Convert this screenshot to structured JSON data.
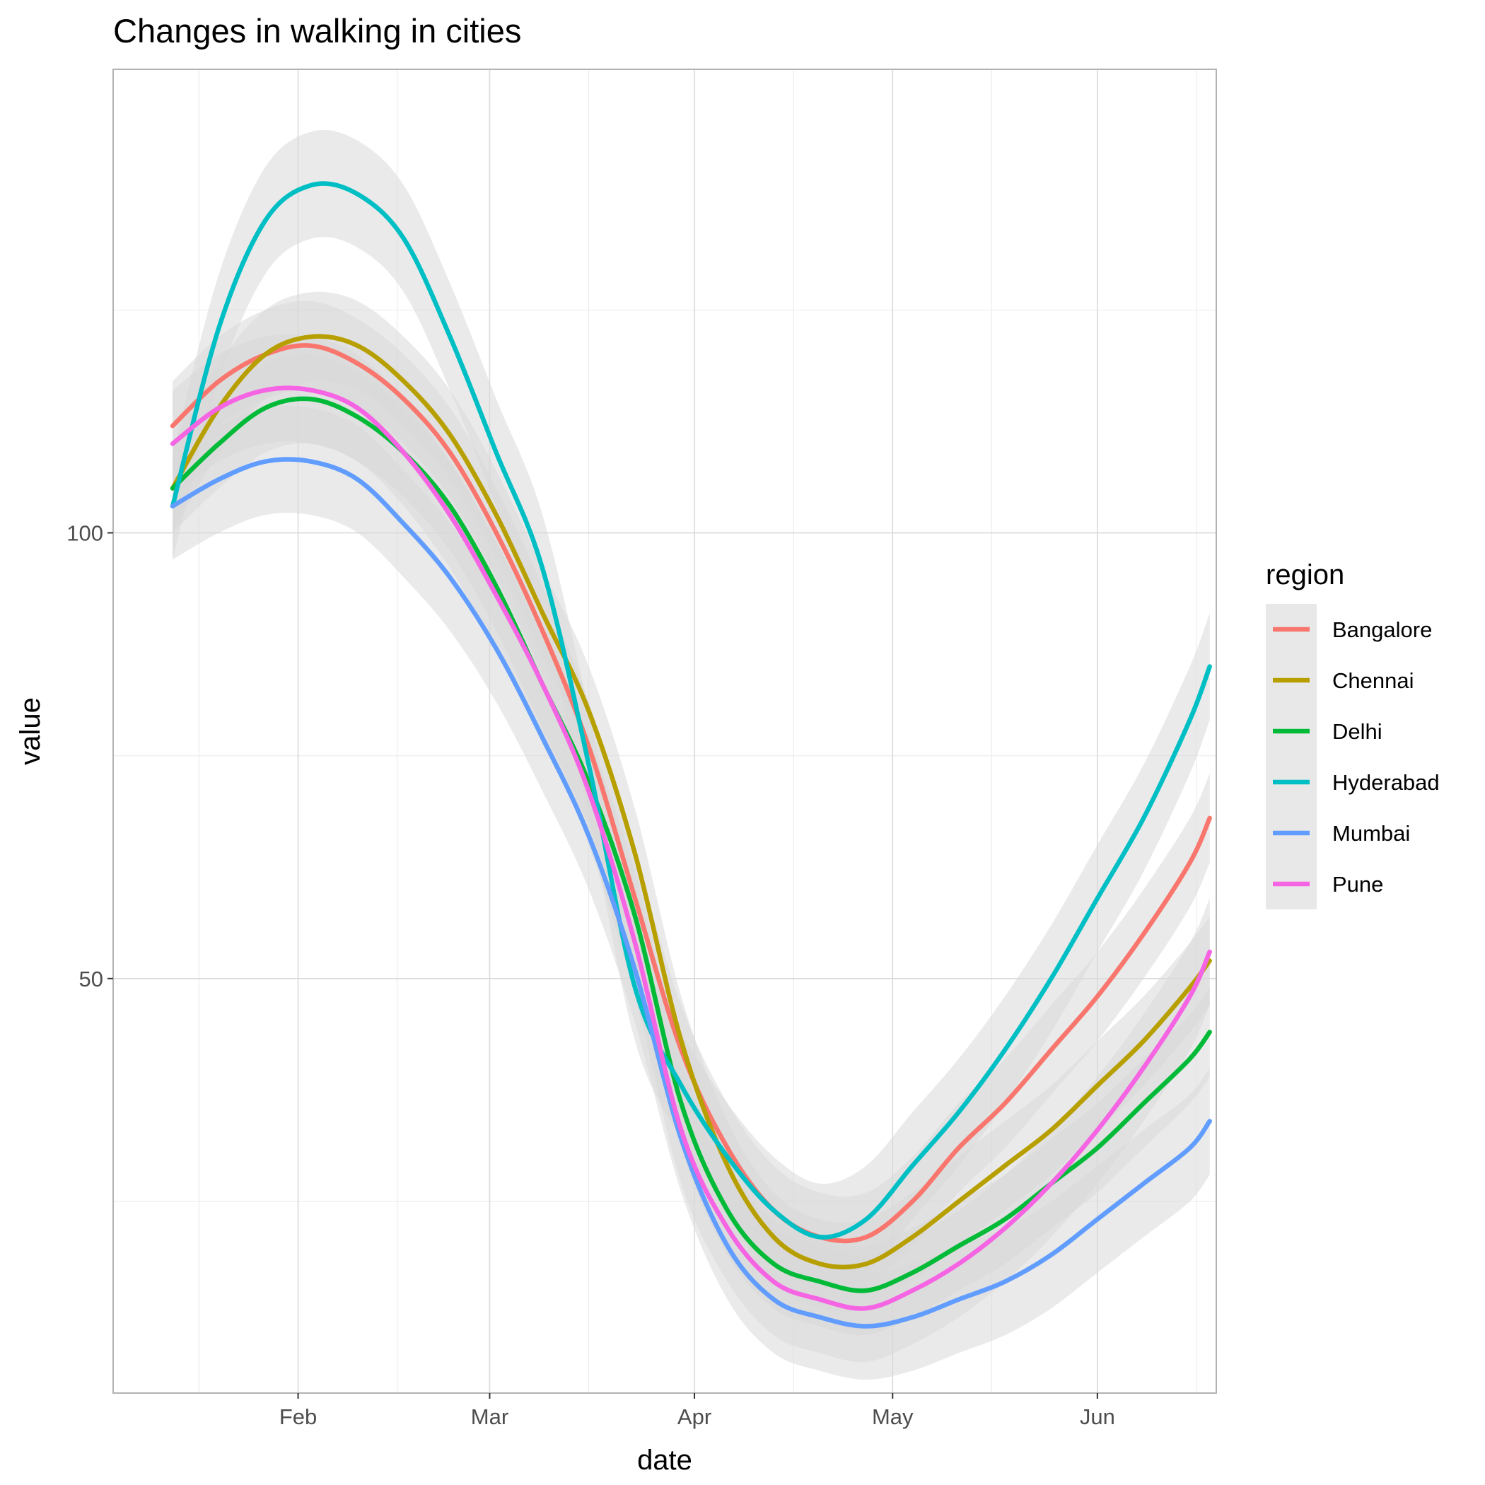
{
  "chart_data": {
    "type": "line",
    "title": "Changes in walking in cities",
    "xlabel": "date",
    "ylabel": "value",
    "x_type": "date",
    "xlim": [
      "2020-01-04",
      "2020-06-19"
    ],
    "ylim": [
      3.5,
      152
    ],
    "x_ticks": [
      {
        "date": "2020-02-01",
        "label": "Feb"
      },
      {
        "date": "2020-03-01",
        "label": "Mar"
      },
      {
        "date": "2020-04-01",
        "label": "Apr"
      },
      {
        "date": "2020-05-01",
        "label": "May"
      },
      {
        "date": "2020-06-01",
        "label": "Jun"
      }
    ],
    "x_minor_ticks": [
      "2020-01-17",
      "2020-02-16",
      "2020-03-16",
      "2020-04-16",
      "2020-05-16",
      "2020-06-16"
    ],
    "y_ticks": [
      50,
      100
    ],
    "y_minor_ticks": [
      25,
      75,
      125
    ],
    "legend": {
      "title": "region",
      "position": "right"
    },
    "grid": true,
    "band_color": "#d9d9d9",
    "x": [
      "2020-01-13",
      "2020-01-20",
      "2020-01-27",
      "2020-02-03",
      "2020-02-10",
      "2020-02-17",
      "2020-02-24",
      "2020-03-02",
      "2020-03-09",
      "2020-03-16",
      "2020-03-23",
      "2020-03-30",
      "2020-04-06",
      "2020-04-13",
      "2020-04-20",
      "2020-04-27",
      "2020-05-04",
      "2020-05-11",
      "2020-05-18",
      "2020-05-25",
      "2020-06-01",
      "2020-06-08",
      "2020-06-15",
      "2020-06-18"
    ],
    "series": [
      {
        "name": "Bangalore",
        "color": "#F8766D",
        "values": [
          112,
          117,
          120,
          121,
          119,
          115,
          109,
          100,
          89,
          76,
          59,
          42,
          31,
          24,
          21,
          21,
          25,
          31,
          36,
          42,
          48,
          55,
          63,
          68
        ],
        "band": 5
      },
      {
        "name": "Chennai",
        "color": "#B79F00",
        "values": [
          105,
          114,
          120,
          122,
          121,
          117,
          111,
          102,
          91,
          80,
          64,
          43,
          29,
          21,
          18,
          18,
          21,
          25,
          29,
          33,
          38,
          43,
          49,
          52
        ],
        "band": 5
      },
      {
        "name": "Delhi",
        "color": "#00BA38",
        "values": [
          105,
          110,
          114,
          115,
          113,
          109,
          103,
          94,
          83,
          72,
          57,
          36,
          24,
          18,
          16,
          15,
          17,
          20,
          23,
          27,
          31,
          36,
          41,
          44
        ],
        "band": 5
      },
      {
        "name": "Hyderabad",
        "color": "#00BFC4",
        "values": [
          103,
          123,
          135,
          139,
          138,
          133,
          122,
          109,
          96,
          74,
          49,
          38,
          30,
          24,
          21,
          23,
          29,
          35,
          42,
          50,
          59,
          68,
          79,
          85
        ],
        "band": 6
      },
      {
        "name": "Mumbai",
        "color": "#619CFF",
        "values": [
          103,
          106,
          108,
          108,
          106,
          101,
          95,
          87,
          77,
          66,
          51,
          32,
          20,
          14,
          12,
          11,
          12,
          14,
          16,
          19,
          23,
          27,
          31,
          34
        ],
        "band": 6
      },
      {
        "name": "Pune",
        "color": "#F564E3",
        "values": [
          110,
          114,
          116,
          116,
          114,
          109,
          102,
          93,
          83,
          71,
          54,
          33,
          22,
          16,
          14,
          13,
          15,
          18,
          22,
          27,
          33,
          40,
          48,
          53
        ],
        "band": 6
      }
    ]
  }
}
